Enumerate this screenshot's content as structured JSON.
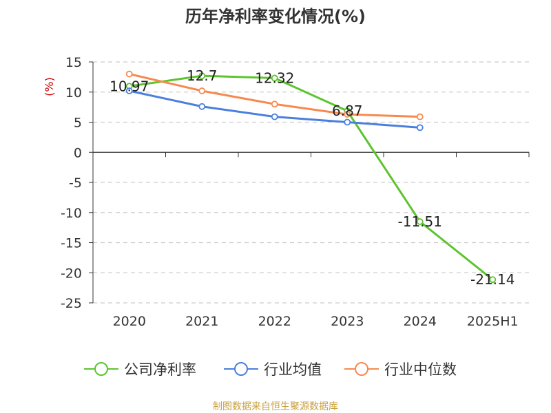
{
  "chart_data": {
    "type": "line",
    "title": "历年净利率变化情况(%)",
    "ylabel": "(%)",
    "xlabel": "",
    "categories": [
      "2020",
      "2021",
      "2022",
      "2023",
      "2024",
      "2025H1"
    ],
    "ylim": [
      -25,
      15
    ],
    "yticks": [
      15,
      10,
      5,
      0,
      -5,
      -10,
      -15,
      -20,
      -25
    ],
    "grid": true,
    "legend_position": "bottom",
    "series": [
      {
        "name": "公司净利率",
        "color": "#5cc42e",
        "values": [
          10.97,
          12.7,
          12.32,
          6.87,
          -11.51,
          -21.14
        ],
        "labels": [
          "10.97",
          "12.7",
          "12.32",
          "6.87",
          "-11.51",
          "-21.14"
        ]
      },
      {
        "name": "行业均值",
        "color": "#4a7fde",
        "values": [
          10.2,
          7.6,
          5.9,
          5.0,
          4.1,
          null
        ]
      },
      {
        "name": "行业中位数",
        "color": "#f7894f",
        "values": [
          13.0,
          10.2,
          8.0,
          6.3,
          5.9,
          null
        ]
      }
    ]
  },
  "footer": {
    "text": "制图数据来自恒生聚源数据库",
    "color": "#c8a03c"
  },
  "colors": {
    "axis": "#333333",
    "grid": "#cccccc",
    "ylabel": "#cc0000"
  }
}
